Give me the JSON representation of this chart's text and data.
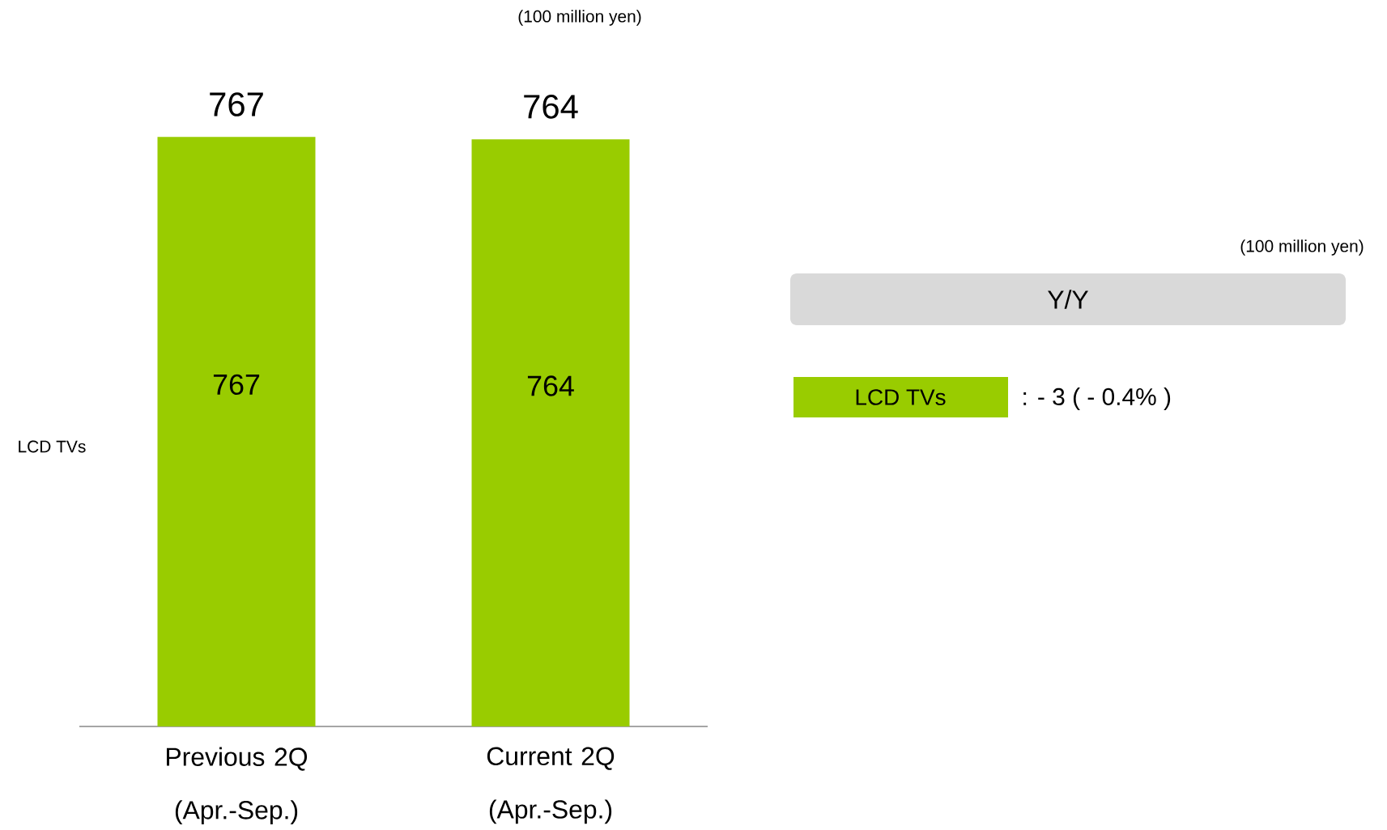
{
  "chart_data": {
    "type": "bar",
    "categories": [
      "Previous 2Q (Apr.-Sep.)",
      "Current 2Q (Apr.-Sep.)"
    ],
    "series": [
      {
        "name": "LCD TVs",
        "color": "#99cc00",
        "values": [
          767,
          764
        ]
      }
    ],
    "data_labels": true,
    "totals": [
      "767",
      "764"
    ],
    "annotations": [
      "(100 million yen)",
      "(100 million yen)",
      "Y/Y",
      ": - 3  ( - 0.4% )"
    ]
  }
}
